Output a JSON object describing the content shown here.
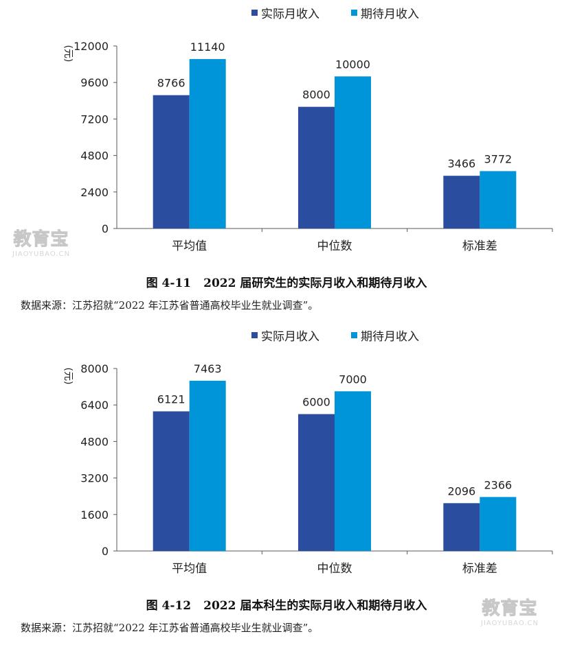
{
  "colors": {
    "actual": "#2a4d9f",
    "expected": "#0095d9",
    "axis": "#595959"
  },
  "watermark": {
    "cn": "教育宝",
    "en": "JIAOYUBAO.CN"
  },
  "figures": [
    {
      "fig_no": "图 4-11",
      "caption": "2022 届研究生的实际月收入和期待月收入",
      "source": "数据来源：江苏招就“2022 年江苏省普通高校毕业生就业调查”。",
      "chart_data": {
        "type": "bar",
        "categories": [
          "平均值",
          "中位数",
          "标准差"
        ],
        "series": [
          {
            "name": "实际月收入",
            "values": [
              8766,
              8000,
              3466
            ]
          },
          {
            "name": "期待月收入",
            "values": [
              11140,
              10000,
              3772
            ]
          }
        ],
        "ylabel": "(元)",
        "ylim": [
          0,
          12000
        ],
        "yticks": [
          "12000",
          "9600",
          "7200",
          "4800",
          "2400",
          "0"
        ],
        "legend": "top-center",
        "grid": false
      }
    },
    {
      "fig_no": "图 4-12",
      "caption": "2022 届本科生的实际月收入和期待月收入",
      "source": "数据来源：江苏招就“2022 年江苏省普通高校毕业生就业调查”。",
      "chart_data": {
        "type": "bar",
        "categories": [
          "平均值",
          "中位数",
          "标准差"
        ],
        "series": [
          {
            "name": "实际月收入",
            "values": [
              6121,
              6000,
              2096
            ]
          },
          {
            "name": "期待月收入",
            "values": [
              7463,
              7000,
              2366
            ]
          }
        ],
        "ylabel": "(元)",
        "ylim": [
          0,
          8000
        ],
        "yticks": [
          "8000",
          "6400",
          "4800",
          "3200",
          "1600",
          "0"
        ],
        "legend": "top-center",
        "grid": false
      }
    }
  ]
}
